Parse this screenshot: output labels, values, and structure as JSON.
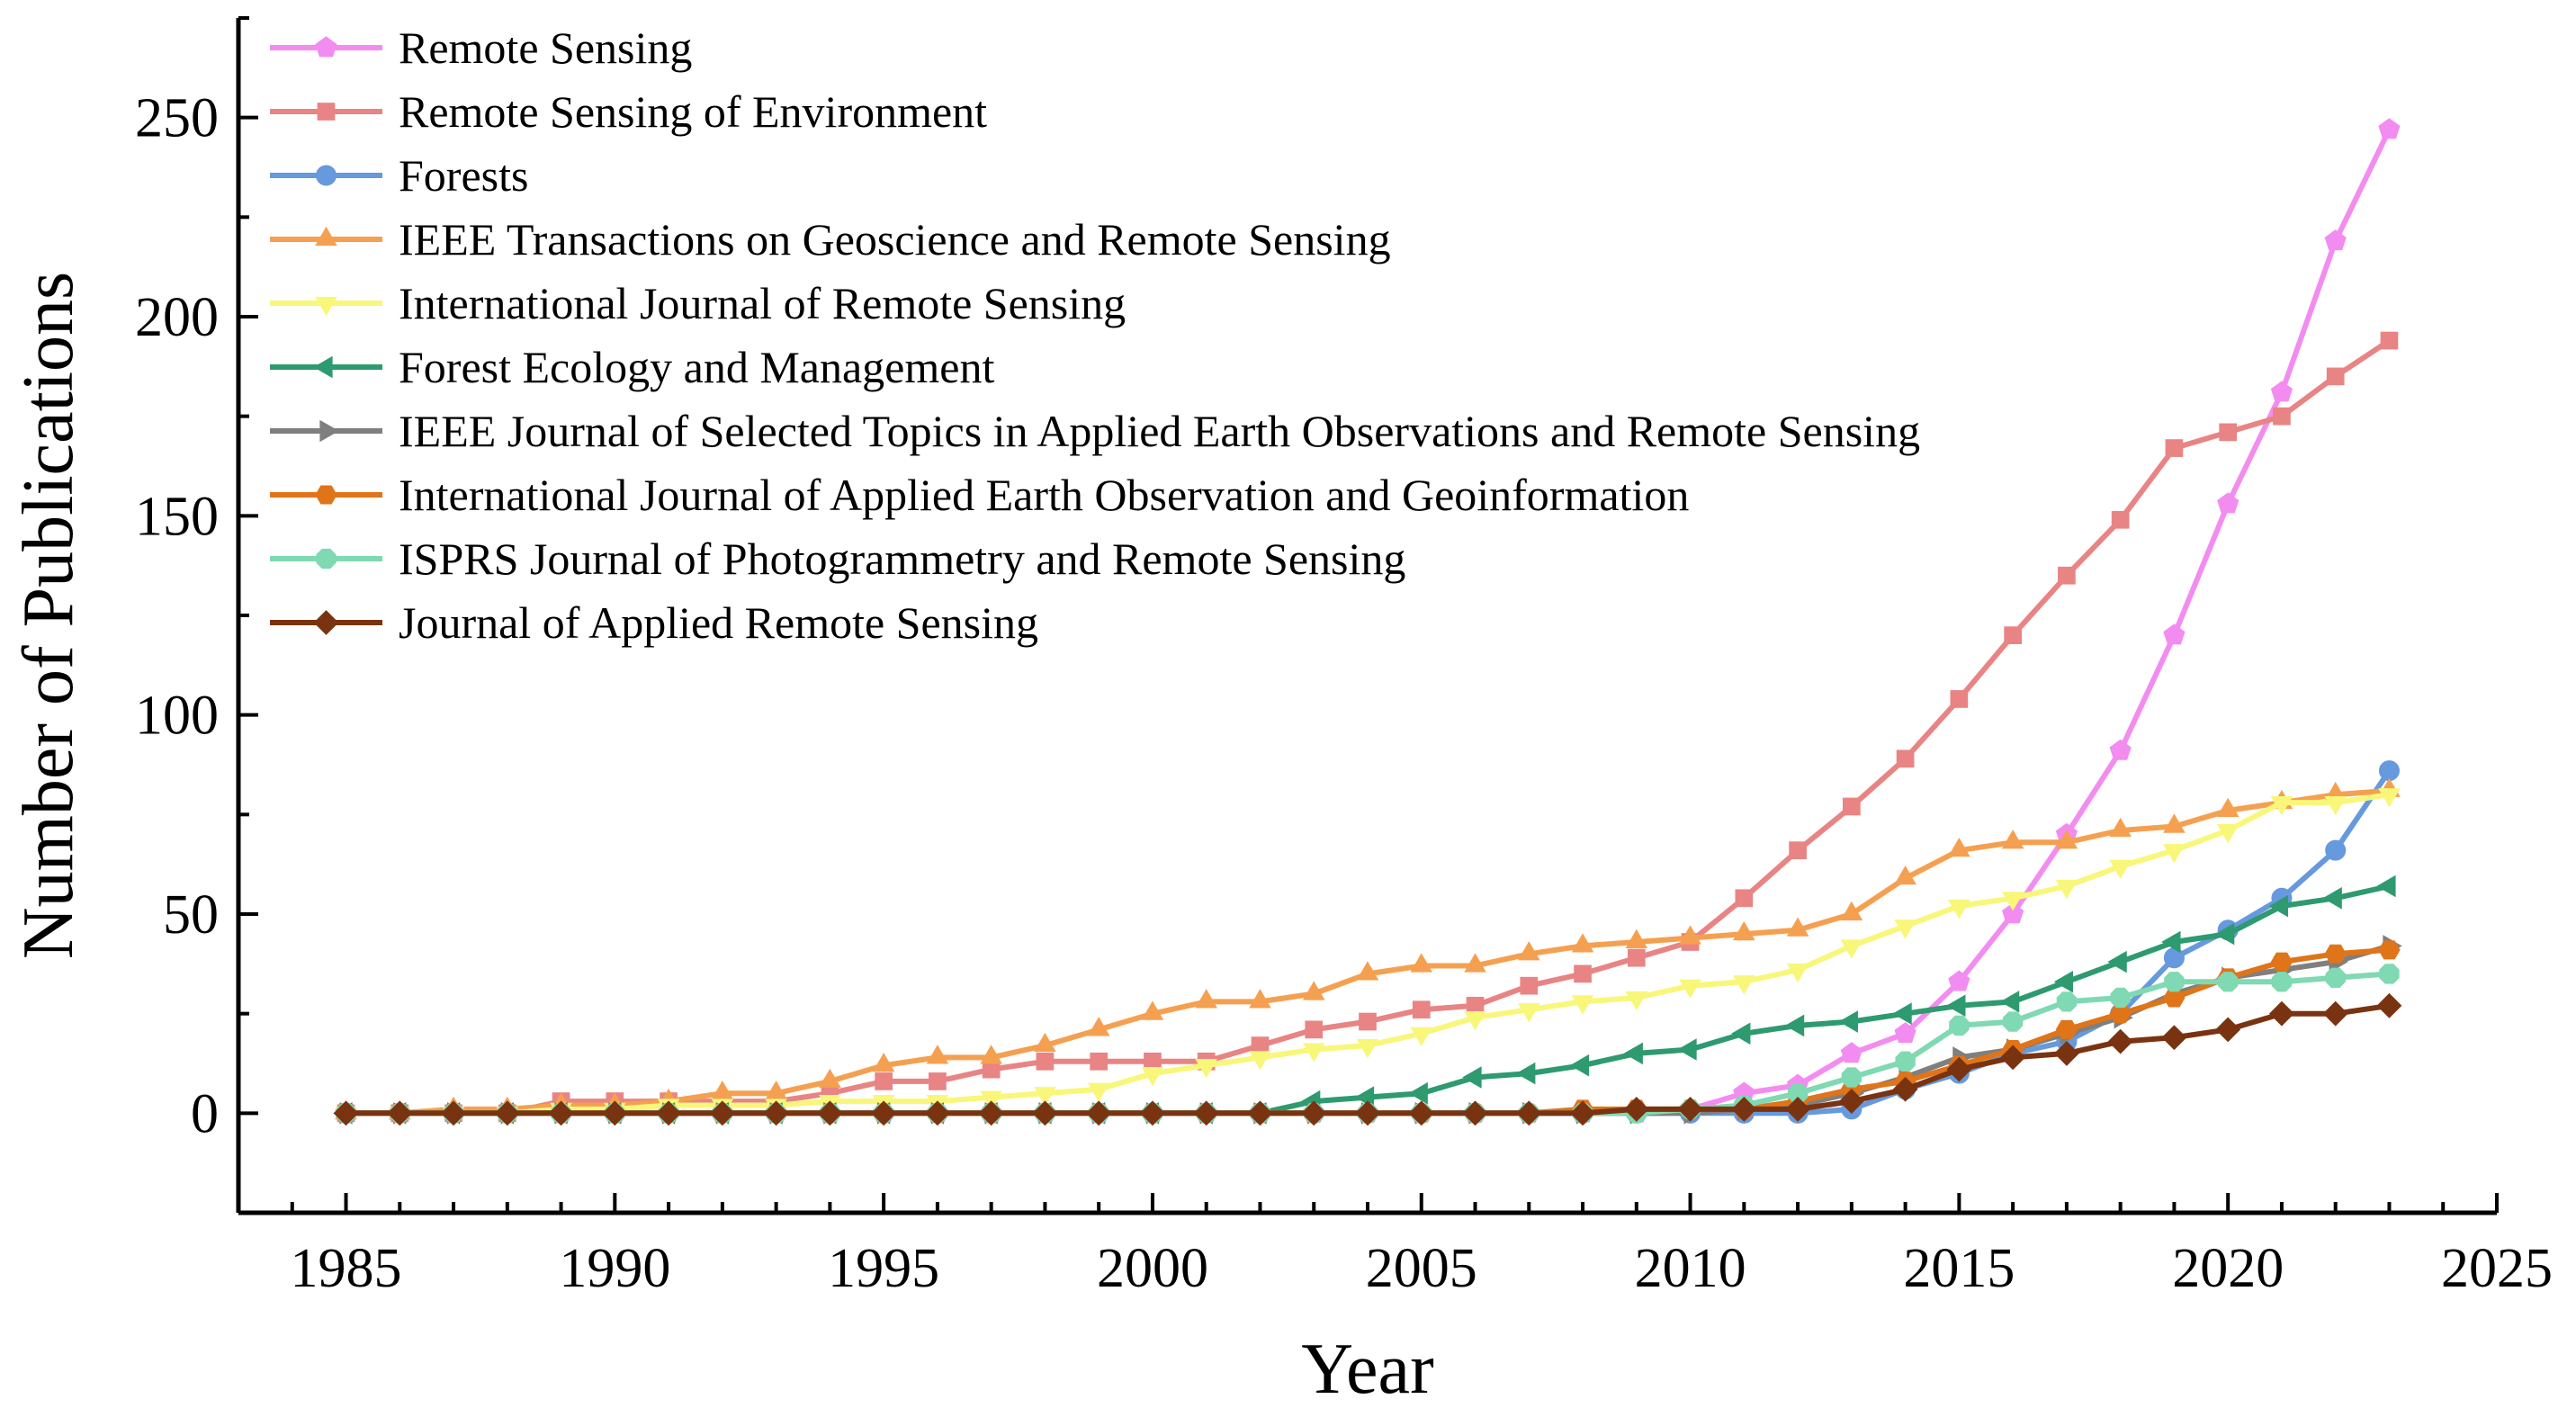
{
  "chart_data": {
    "type": "line",
    "title": "",
    "xlabel": "Year",
    "ylabel": "Number of Publications",
    "xlim": [
      1983,
      2025
    ],
    "ylim": [
      -25,
      275
    ],
    "xticks": [
      1985,
      1990,
      1995,
      2000,
      2005,
      2010,
      2015,
      2020,
      2025
    ],
    "yticks": [
      0,
      50,
      100,
      150,
      200,
      250
    ],
    "grid": false,
    "legend_position": "top-left",
    "x": [
      1985,
      1986,
      1987,
      1988,
      1989,
      1990,
      1991,
      1992,
      1993,
      1994,
      1995,
      1996,
      1997,
      1998,
      1999,
      2000,
      2001,
      2002,
      2003,
      2004,
      2005,
      2006,
      2007,
      2008,
      2009,
      2010,
      2011,
      2012,
      2013,
      2014,
      2015,
      2016,
      2017,
      2018,
      2019,
      2020,
      2021,
      2022,
      2023
    ],
    "series": [
      {
        "name": "Remote Sensing",
        "color": "#f38cf0",
        "marker": "pentagon",
        "values": [
          0,
          0,
          0,
          0,
          0,
          0,
          0,
          0,
          0,
          0,
          0,
          0,
          0,
          0,
          0,
          0,
          0,
          0,
          0,
          0,
          0,
          0,
          0,
          0,
          0,
          1,
          5,
          7,
          15,
          20,
          33,
          50,
          70,
          91,
          120,
          153,
          181,
          219,
          247
        ]
      },
      {
        "name": "Remote Sensing of Environment",
        "color": "#e98484",
        "marker": "square",
        "values": [
          0,
          0,
          0,
          0,
          3,
          3,
          3,
          3,
          3,
          5,
          8,
          8,
          11,
          13,
          13,
          13,
          13,
          17,
          21,
          23,
          26,
          27,
          32,
          35,
          39,
          43,
          54,
          66,
          77,
          89,
          104,
          120,
          135,
          149,
          167,
          171,
          175,
          185,
          194
        ]
      },
      {
        "name": "Forests",
        "color": "#6699dd",
        "marker": "circle",
        "values": [
          0,
          0,
          0,
          0,
          0,
          0,
          0,
          0,
          0,
          0,
          0,
          0,
          0,
          0,
          0,
          0,
          0,
          0,
          0,
          0,
          0,
          0,
          0,
          0,
          0,
          0,
          0,
          0,
          1,
          6,
          10,
          15,
          18,
          25,
          39,
          46,
          54,
          66,
          86
        ]
      },
      {
        "name": "IEEE Transactions on Geoscience and Remote Sensing",
        "color": "#f5a050",
        "marker": "triangle-up",
        "values": [
          0,
          0,
          1,
          1,
          2,
          2,
          3,
          5,
          5,
          8,
          12,
          14,
          14,
          17,
          21,
          25,
          28,
          28,
          30,
          35,
          37,
          37,
          40,
          42,
          43,
          44,
          45,
          46,
          50,
          59,
          66,
          68,
          68,
          71,
          72,
          76,
          78,
          80,
          81
        ]
      },
      {
        "name": "International Journal of Remote Sensing",
        "color": "#f8f77a",
        "marker": "triangle-down",
        "values": [
          0,
          0,
          0,
          0,
          1,
          1,
          2,
          2,
          2,
          3,
          3,
          3,
          4,
          5,
          6,
          10,
          12,
          14,
          16,
          17,
          20,
          24,
          26,
          28,
          29,
          32,
          33,
          36,
          42,
          47,
          52,
          54,
          57,
          62,
          66,
          71,
          78,
          78,
          80
        ]
      },
      {
        "name": "Forest Ecology and Management",
        "color": "#2e9a70",
        "marker": "triangle-left",
        "values": [
          0,
          0,
          0,
          0,
          0,
          0,
          0,
          0,
          0,
          0,
          0,
          0,
          0,
          0,
          0,
          0,
          0,
          0,
          3,
          4,
          5,
          9,
          10,
          12,
          15,
          16,
          20,
          22,
          23,
          25,
          27,
          28,
          33,
          38,
          43,
          45,
          52,
          54,
          57
        ]
      },
      {
        "name": "IEEE Journal of Selected Topics in Applied Earth Observations and Remote Sensing",
        "color": "#7f7f7f",
        "marker": "triangle-right",
        "values": [
          0,
          0,
          0,
          0,
          0,
          0,
          0,
          0,
          0,
          0,
          0,
          0,
          0,
          0,
          0,
          0,
          0,
          0,
          0,
          0,
          0,
          0,
          0,
          0,
          0,
          0,
          1,
          2,
          5,
          9,
          14,
          16,
          20,
          24,
          30,
          34,
          36,
          38,
          42
        ]
      },
      {
        "name": "International Journal of Applied Earth Observation and Geoinformation",
        "color": "#e07418",
        "marker": "hexagon",
        "values": [
          0,
          0,
          0,
          0,
          0,
          0,
          0,
          0,
          0,
          0,
          0,
          0,
          0,
          0,
          0,
          0,
          0,
          0,
          0,
          0,
          0,
          0,
          0,
          1,
          1,
          1,
          1,
          3,
          6,
          8,
          12,
          16,
          21,
          25,
          29,
          34,
          38,
          40,
          41
        ]
      },
      {
        "name": "ISPRS Journal of Photogrammetry and Remote Sensing",
        "color": "#7fd9b2",
        "marker": "octagon",
        "values": [
          0,
          0,
          0,
          0,
          0,
          0,
          0,
          0,
          0,
          0,
          0,
          0,
          0,
          0,
          0,
          0,
          0,
          0,
          0,
          0,
          0,
          0,
          0,
          0,
          0,
          1,
          2,
          5,
          9,
          13,
          22,
          23,
          28,
          29,
          33,
          33,
          33,
          34,
          35
        ]
      },
      {
        "name": "Journal of Applied Remote Sensing",
        "color": "#7a3310",
        "marker": "diamond",
        "values": [
          0,
          0,
          0,
          0,
          0,
          0,
          0,
          0,
          0,
          0,
          0,
          0,
          0,
          0,
          0,
          0,
          0,
          0,
          0,
          0,
          0,
          0,
          0,
          0,
          1,
          1,
          1,
          1,
          3,
          6,
          11,
          14,
          15,
          18,
          19,
          21,
          25,
          25,
          27
        ]
      }
    ]
  }
}
